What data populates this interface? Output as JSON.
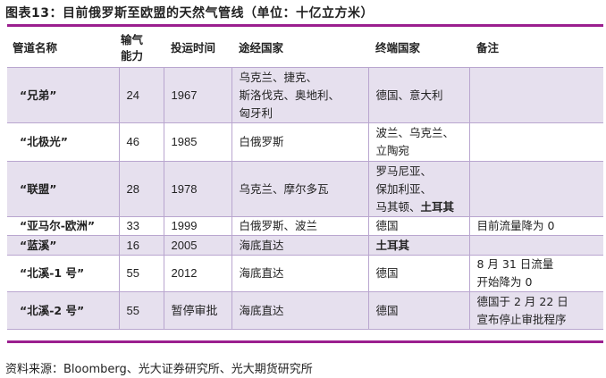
{
  "title": "图表13：目前俄罗斯至欧盟的天然气管线（单位：十亿立方米）",
  "accent_color": "#9b1f8f",
  "headers": [
    "管道名称",
    "输气能力",
    "投运时间",
    "途经国家",
    "终端国家",
    "备注"
  ],
  "rows": [
    {
      "name": "“兄弟”",
      "capacity": "24",
      "start": "1967",
      "transit": [
        "乌克兰、捷克、",
        "斯洛伐克、奥地利、",
        "匈牙利"
      ],
      "terminal": [
        [
          {
            "t": "德国、意大利"
          }
        ]
      ],
      "note": []
    },
    {
      "name": "“北极光”",
      "capacity": "46",
      "start": "1985",
      "transit": [
        "白俄罗斯"
      ],
      "terminal": [
        [
          {
            "t": "波兰、乌克兰、"
          }
        ],
        [
          {
            "t": "立陶宛"
          }
        ]
      ],
      "note": []
    },
    {
      "name": "“联盟”",
      "capacity": "28",
      "start": "1978",
      "transit": [
        "乌克兰、摩尔多瓦"
      ],
      "terminal": [
        [
          {
            "t": "罗马尼亚、"
          }
        ],
        [
          {
            "t": "保加利亚、"
          }
        ],
        [
          {
            "t": "马其顿、"
          },
          {
            "t": "土耳其",
            "bold": true
          }
        ]
      ],
      "note": []
    },
    {
      "name": "“亚马尔-欧洲”",
      "capacity": "33",
      "start": "1999",
      "transit": [
        "白俄罗斯、波兰"
      ],
      "terminal": [
        [
          {
            "t": "德国"
          }
        ]
      ],
      "note": [
        "目前流量降为 0"
      ]
    },
    {
      "name": "“蓝溪”",
      "capacity": "16",
      "start": "2005",
      "transit": [
        "海底直达"
      ],
      "terminal": [
        [
          {
            "t": "土耳其",
            "bold": true
          }
        ]
      ],
      "note": []
    },
    {
      "name": "“北溪-1 号”",
      "capacity": "55",
      "start": "2012",
      "transit": [
        "海底直达"
      ],
      "terminal": [
        [
          {
            "t": "德国"
          }
        ]
      ],
      "note": [
        "8 月 31 日流量",
        "开始降为 0"
      ]
    },
    {
      "name": "“北溪-2 号”",
      "capacity": "55",
      "start": "暂停审批",
      "transit": [
        "海底直达"
      ],
      "terminal": [
        [
          {
            "t": "德国"
          }
        ]
      ],
      "note": [
        "德国于 2 月 22 日",
        "宣布停止审批程序"
      ]
    }
  ],
  "source": "资料来源：Bloomberg、光大证券研究所、光大期货研究所"
}
